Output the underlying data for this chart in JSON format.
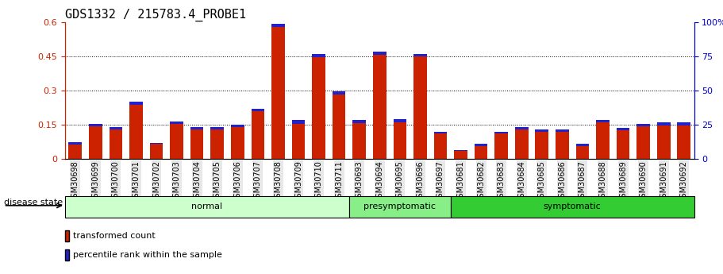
{
  "title": "GDS1332 / 215783.4_PROBE1",
  "samples": [
    "GSM30698",
    "GSM30699",
    "GSM30700",
    "GSM30701",
    "GSM30702",
    "GSM30703",
    "GSM30704",
    "GSM30705",
    "GSM30706",
    "GSM30707",
    "GSM30708",
    "GSM30709",
    "GSM30710",
    "GSM30711",
    "GSM30693",
    "GSM30694",
    "GSM30695",
    "GSM30696",
    "GSM30697",
    "GSM30681",
    "GSM30682",
    "GSM30683",
    "GSM30684",
    "GSM30685",
    "GSM30686",
    "GSM30687",
    "GSM30688",
    "GSM30689",
    "GSM30690",
    "GSM30691",
    "GSM30692"
  ],
  "red_values": [
    0.075,
    0.155,
    0.14,
    0.25,
    0.07,
    0.165,
    0.14,
    0.14,
    0.15,
    0.22,
    0.59,
    0.17,
    0.46,
    0.295,
    0.17,
    0.47,
    0.175,
    0.46,
    0.12,
    0.04,
    0.065,
    0.12,
    0.14,
    0.13,
    0.13,
    0.065,
    0.17,
    0.135,
    0.155,
    0.16,
    0.16
  ],
  "blue_values": [
    0.012,
    0.012,
    0.012,
    0.012,
    0.005,
    0.012,
    0.01,
    0.01,
    0.01,
    0.012,
    0.012,
    0.015,
    0.015,
    0.012,
    0.012,
    0.015,
    0.015,
    0.012,
    0.01,
    0.005,
    0.008,
    0.01,
    0.01,
    0.01,
    0.01,
    0.008,
    0.01,
    0.01,
    0.012,
    0.012,
    0.012
  ],
  "groups": [
    {
      "label": "normal",
      "start": 0,
      "end": 13,
      "color": "#ccffcc"
    },
    {
      "label": "presymptomatic",
      "start": 14,
      "end": 18,
      "color": "#88ee88"
    },
    {
      "label": "symptomatic",
      "start": 19,
      "end": 30,
      "color": "#33cc33"
    }
  ],
  "ylim_left": [
    0,
    0.6
  ],
  "ylim_right": [
    0,
    100
  ],
  "yticks_left": [
    0,
    0.15,
    0.3,
    0.45,
    0.6
  ],
  "yticks_right": [
    0,
    25,
    50,
    75,
    100
  ],
  "bar_color_red": "#cc2200",
  "bar_color_blue": "#2222cc",
  "bar_width": 0.65,
  "disease_state_label": "disease state",
  "legend_red": "transformed count",
  "legend_blue": "percentile rank within the sample",
  "left_ycolor": "#cc2200",
  "right_ycolor": "#0000cc",
  "title_fontsize": 11,
  "tick_fontsize": 7,
  "bg_color": "#e8e8e8"
}
